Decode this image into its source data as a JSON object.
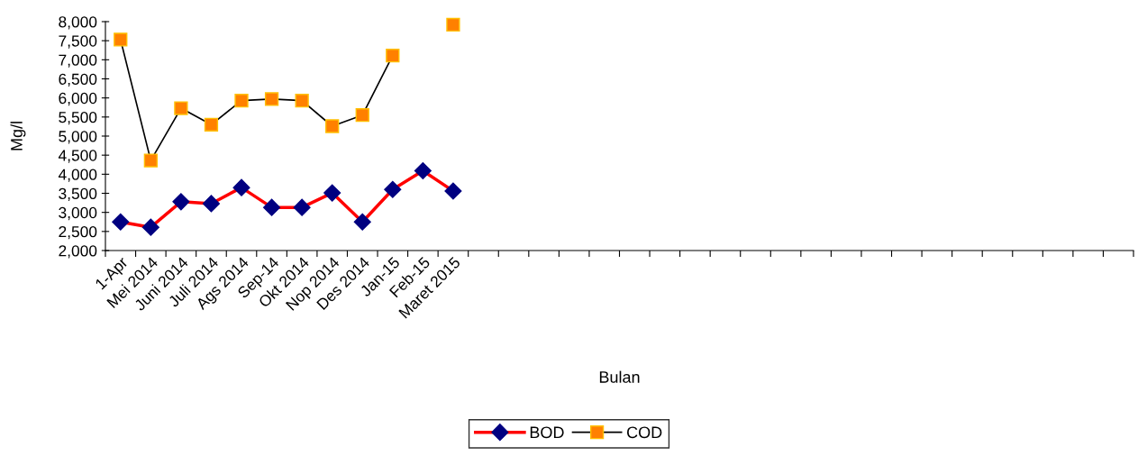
{
  "chart_data": {
    "type": "line",
    "xlabel": "Bulan",
    "ylabel": "Mg/l",
    "categories": [
      "1-Apr",
      "Mei 2014",
      "Juni 2014",
      "Juli 2014",
      "Ags 2014",
      "Sep-14",
      "Okt 2014",
      "Nop 2014",
      "Des 2014",
      "Jan-15",
      "Feb-15",
      "Maret 2015",
      null,
      null,
      null,
      null,
      null,
      null,
      null,
      null,
      null,
      null,
      null,
      null,
      null,
      null,
      null,
      null,
      null,
      null,
      null,
      null,
      null,
      null
    ],
    "series": [
      {
        "name": "BOD",
        "color": "#ff0000",
        "colors": [
          "#000080",
          "#000080",
          "#000080",
          "#000080",
          "#000080",
          "#000080",
          "#000080",
          "#000080",
          "#000080",
          "#000080",
          "#000080",
          "#000080",
          "#000080",
          "#000080",
          "#000080",
          "#000080",
          "#000080",
          "#000080",
          "#000080",
          "#000080",
          "#000080",
          "#000080",
          "#000080",
          "#000080",
          "#000080",
          "#000080",
          "#000080",
          "#000080",
          "#000080",
          "#000080",
          "#000080",
          "#000080",
          "#000080",
          "#000080"
        ],
        "marker": "diamond",
        "values": [
          2750,
          2610,
          3280,
          3230,
          3650,
          3130,
          3130,
          3510,
          2750,
          3600,
          4090,
          3560,
          null,
          null,
          null,
          null,
          null,
          null,
          null,
          null,
          null,
          null,
          null,
          null,
          null,
          null,
          null,
          null,
          null,
          null,
          null,
          null,
          null,
          null
        ]
      },
      {
        "name": "COD",
        "color": "#000000",
        "colors": [
          "#ff8000",
          "#ff8000",
          "#ff8000",
          "#ff8000",
          "#ff8000",
          "#ff8000",
          "#ff8000",
          "#ff8000",
          "#ff8000",
          "#ff8000",
          "#ff8000",
          "#ff8000",
          "#ff8000",
          "#ff8000",
          "#ff8000",
          "#ff8000",
          "#ff8000",
          "#ff8000",
          "#ff8000",
          "#ff8000",
          "#ff8000",
          "#ff8000",
          "#ff8000",
          "#ff8000",
          "#ff8000",
          "#ff8000",
          "#ff8000",
          "#ff8000",
          "#ff8000",
          "#ff8000",
          "#ff8000",
          "#ff8000",
          "#ff8000",
          "#ff8000"
        ],
        "marker": "square",
        "values": [
          7530,
          4360,
          5730,
          5300,
          5930,
          5970,
          5930,
          5260,
          5550,
          7110,
          null,
          7920,
          null,
          null,
          null,
          null,
          null,
          null,
          null,
          null,
          null,
          null,
          null,
          null,
          null,
          null,
          null,
          null,
          null,
          null,
          null,
          null,
          null,
          null
        ]
      }
    ],
    "ylim": [
      2000,
      8000
    ],
    "yticks": [
      {
        "value": 2000,
        "label": "2,000"
      },
      {
        "value": 2500,
        "label": "2,500"
      },
      {
        "value": 3000,
        "label": "3,000"
      },
      {
        "value": 3500,
        "label": "3,500"
      },
      {
        "value": 4000,
        "label": "4,000"
      },
      {
        "value": 4500,
        "label": "4,500"
      },
      {
        "value": 5000,
        "label": "5,000"
      },
      {
        "value": 5500,
        "label": "5,500"
      },
      {
        "value": 6000,
        "label": "6,000"
      },
      {
        "value": 6500,
        "label": "6,500"
      },
      {
        "value": 7000,
        "label": "7,000"
      },
      {
        "value": 7500,
        "label": "7,500"
      },
      {
        "value": 8000,
        "label": "8,000"
      }
    ],
    "grid": false,
    "legend": "bottom",
    "line_style": "solid"
  }
}
